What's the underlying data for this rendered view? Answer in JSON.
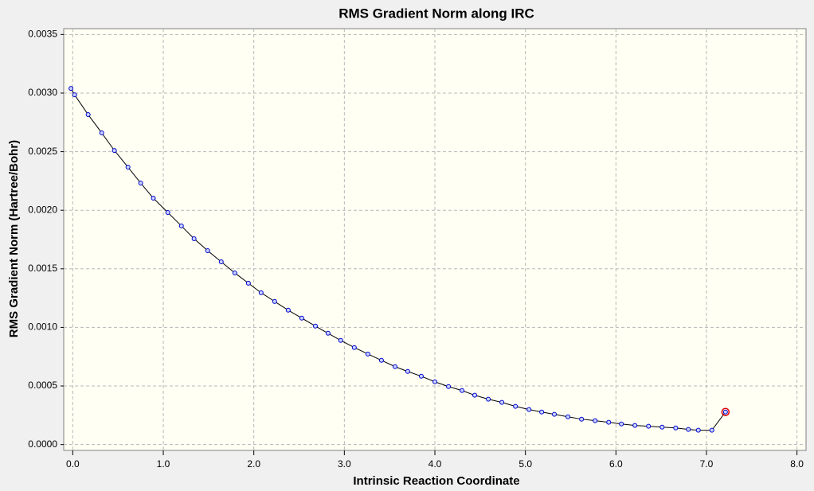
{
  "chart_data": {
    "type": "line",
    "title": "RMS Gradient Norm along IRC",
    "x_label": "Intrinsic Reaction Coordinate",
    "y_label": "RMS Gradient Norm (Hartree/Bohr)",
    "x": [
      -0.02,
      0.02,
      0.17,
      0.32,
      0.46,
      0.61,
      0.75,
      0.89,
      1.05,
      1.2,
      1.34,
      1.49,
      1.64,
      1.79,
      1.94,
      2.08,
      2.23,
      2.38,
      2.53,
      2.68,
      2.82,
      2.96,
      3.11,
      3.26,
      3.41,
      3.56,
      3.7,
      3.85,
      4.0,
      4.15,
      4.3,
      4.44,
      4.59,
      4.74,
      4.89,
      5.04,
      5.18,
      5.32,
      5.47,
      5.62,
      5.77,
      5.92,
      6.06,
      6.21,
      6.36,
      6.51,
      6.66,
      6.8,
      6.91,
      7.06,
      7.21
    ],
    "series": [
      {
        "color": "#0000cc",
        "values": [
          0.00304,
          0.002985,
          0.002816,
          0.00266,
          0.00251,
          0.002368,
          0.002232,
          0.002103,
          0.001981,
          0.001866,
          0.001757,
          0.001655,
          0.00156,
          0.001465,
          0.001377,
          0.001296,
          0.001221,
          0.001147,
          0.001079,
          0.001011,
          0.00095,
          0.000889,
          0.000828,
          0.000773,
          0.000719,
          0.000665,
          0.000624,
          0.000583,
          0.000536,
          0.000495,
          0.000461,
          0.000421,
          0.000387,
          0.00036,
          0.000326,
          0.000299,
          0.000278,
          0.000258,
          0.000237,
          0.000217,
          0.000204,
          0.00019,
          0.000176,
          0.000163,
          0.000156,
          0.000149,
          0.000142,
          0.000129,
          0.000122,
          0.000122,
          0.000278
        ]
      }
    ],
    "line_color": "#000000",
    "highlight_color": "#dd0000",
    "xlim": [
      -0.1,
      8.1
    ],
    "ylim": [
      -5e-05,
      0.00355
    ],
    "xticks": [
      {
        "value": 0,
        "label": "0.0"
      },
      {
        "value": 1,
        "label": "1.0"
      },
      {
        "value": 2,
        "label": "2.0"
      },
      {
        "value": 3,
        "label": "3.0"
      },
      {
        "value": 4,
        "label": "4.0"
      },
      {
        "value": 5,
        "label": "5.0"
      },
      {
        "value": 6,
        "label": "6.0"
      },
      {
        "value": 7,
        "label": "7.0"
      },
      {
        "value": 8,
        "label": "8.0"
      }
    ],
    "yticks": [
      {
        "value": 0,
        "label": "0.0000"
      },
      {
        "value": 0.0005,
        "label": "0.0005"
      },
      {
        "value": 0.001,
        "label": "0.0010"
      },
      {
        "value": 0.0015,
        "label": "0.0015"
      },
      {
        "value": 0.002,
        "label": "0.0020"
      },
      {
        "value": 0.0025,
        "label": "0.0025"
      },
      {
        "value": 0.003,
        "label": "0.0030"
      },
      {
        "value": 0.0035,
        "label": "0.0035"
      }
    ],
    "grid": true
  }
}
